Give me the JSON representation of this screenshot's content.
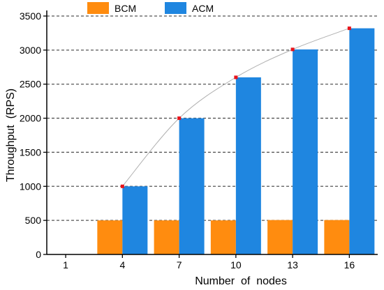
{
  "chart_data": {
    "type": "bar",
    "xlabel": "Number  of  nodes",
    "ylabel": "Throughput  (RPS)",
    "x_ticks": [
      1,
      4,
      7,
      10,
      13,
      16
    ],
    "categories": [
      4,
      7,
      10,
      13,
      16
    ],
    "ylim": [
      0,
      3500
    ],
    "y_ticks": [
      0,
      500,
      1000,
      1500,
      2000,
      2500,
      3000,
      3500
    ],
    "grid": "horizontal dashed",
    "legend_position": "top",
    "series": [
      {
        "name": "BCM",
        "color": "#ff8c0f",
        "values": [
          500,
          500,
          500,
          505,
          505
        ]
      },
      {
        "name": "ACM",
        "color": "#1f86e0",
        "values": [
          1000,
          2000,
          2600,
          3010,
          3320
        ]
      }
    ],
    "trend_line": {
      "series": "ACM",
      "line_color": "#b0b0b0",
      "marker_color": "#e8141b"
    }
  }
}
